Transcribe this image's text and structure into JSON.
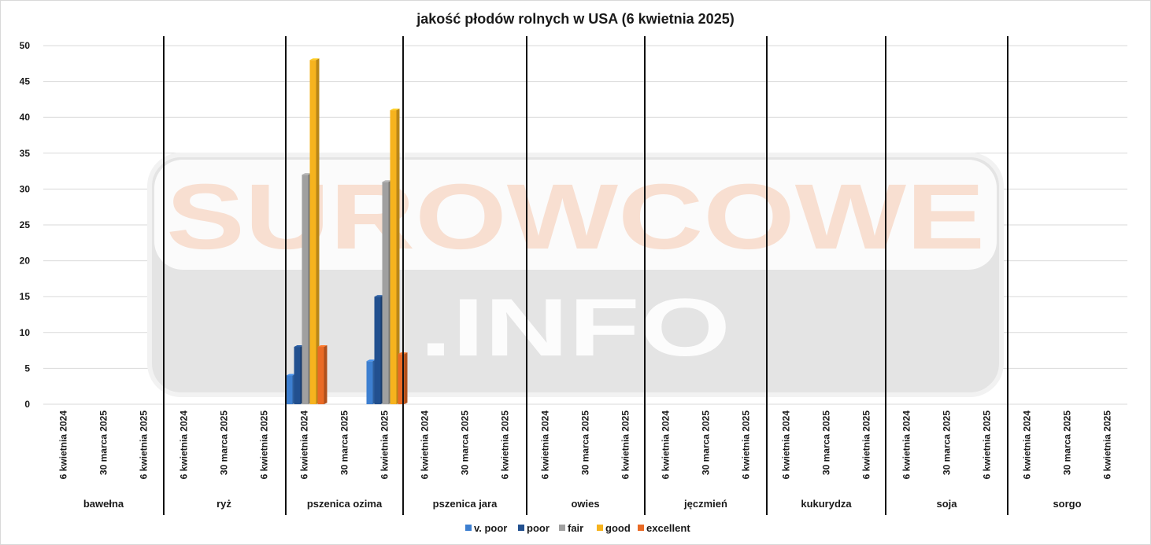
{
  "chart_data": {
    "type": "bar",
    "title": "jakość płodów rolnych w USA (6 kwietnia 2025)",
    "ylim": [
      0,
      50
    ],
    "y_ticks": [
      "0",
      "5",
      "10",
      "15",
      "20",
      "25",
      "30",
      "35",
      "40",
      "45",
      "50"
    ],
    "grid": true,
    "legend_position": "bottom",
    "groups": [
      {
        "name": "bawełna",
        "periods": [
          "6 kwietnia 2024",
          "30 marca 2025",
          "6 kwietnia 2025"
        ]
      },
      {
        "name": "ryż",
        "periods": [
          "6 kwietnia 2024",
          "30 marca 2025",
          "6 kwietnia 2025"
        ]
      },
      {
        "name": "pszenica ozima",
        "periods": [
          "6 kwietnia 2024",
          "30 marca 2025",
          "6 kwietnia 2025"
        ]
      },
      {
        "name": "pszenica jara",
        "periods": [
          "6 kwietnia 2024",
          "30 marca 2025",
          "6 kwietnia 2025"
        ]
      },
      {
        "name": "owies",
        "periods": [
          "6 kwietnia 2024",
          "30 marca 2025",
          "6 kwietnia 2025"
        ]
      },
      {
        "name": "jęczmień",
        "periods": [
          "6 kwietnia 2024",
          "30 marca 2025",
          "6 kwietnia 2025"
        ]
      },
      {
        "name": "kukurydza",
        "periods": [
          "6 kwietnia 2024",
          "30 marca 2025",
          "6 kwietnia 2025"
        ]
      },
      {
        "name": "soja",
        "periods": [
          "6 kwietnia 2024",
          "30 marca 2025",
          "6 kwietnia 2025"
        ]
      },
      {
        "name": "sorgo",
        "periods": [
          "6 kwietnia 2024",
          "30 marca 2025",
          "6 kwietnia 2025"
        ]
      }
    ],
    "series": [
      {
        "name": "v. poor",
        "color": "#3d7fd0",
        "values": [
          null,
          null,
          null,
          null,
          null,
          null,
          4,
          null,
          6,
          null,
          null,
          null,
          null,
          null,
          null,
          null,
          null,
          null,
          null,
          null,
          null,
          null,
          null,
          null,
          null,
          null,
          null
        ]
      },
      {
        "name": "poor",
        "color": "#22508f",
        "values": [
          null,
          null,
          null,
          null,
          null,
          null,
          8,
          null,
          15,
          null,
          null,
          null,
          null,
          null,
          null,
          null,
          null,
          null,
          null,
          null,
          null,
          null,
          null,
          null,
          null,
          null,
          null
        ]
      },
      {
        "name": "fair",
        "color": "#a0a0a0",
        "values": [
          null,
          null,
          null,
          null,
          null,
          null,
          32,
          null,
          31,
          null,
          null,
          null,
          null,
          null,
          null,
          null,
          null,
          null,
          null,
          null,
          null,
          null,
          null,
          null,
          null,
          null,
          null
        ]
      },
      {
        "name": "good",
        "color": "#f6b31e",
        "values": [
          null,
          null,
          null,
          null,
          null,
          null,
          48,
          null,
          41,
          null,
          null,
          null,
          null,
          null,
          null,
          null,
          null,
          null,
          null,
          null,
          null,
          null,
          null,
          null,
          null,
          null,
          null
        ]
      },
      {
        "name": "excellent",
        "color": "#e96a25",
        "values": [
          null,
          null,
          null,
          null,
          null,
          null,
          8,
          null,
          7,
          null,
          null,
          null,
          null,
          null,
          null,
          null,
          null,
          null,
          null,
          null,
          null,
          null,
          null,
          null,
          null,
          null,
          null
        ]
      }
    ]
  },
  "watermark": {
    "line1": "SUROWCOWE",
    "line2": ".INFO"
  }
}
